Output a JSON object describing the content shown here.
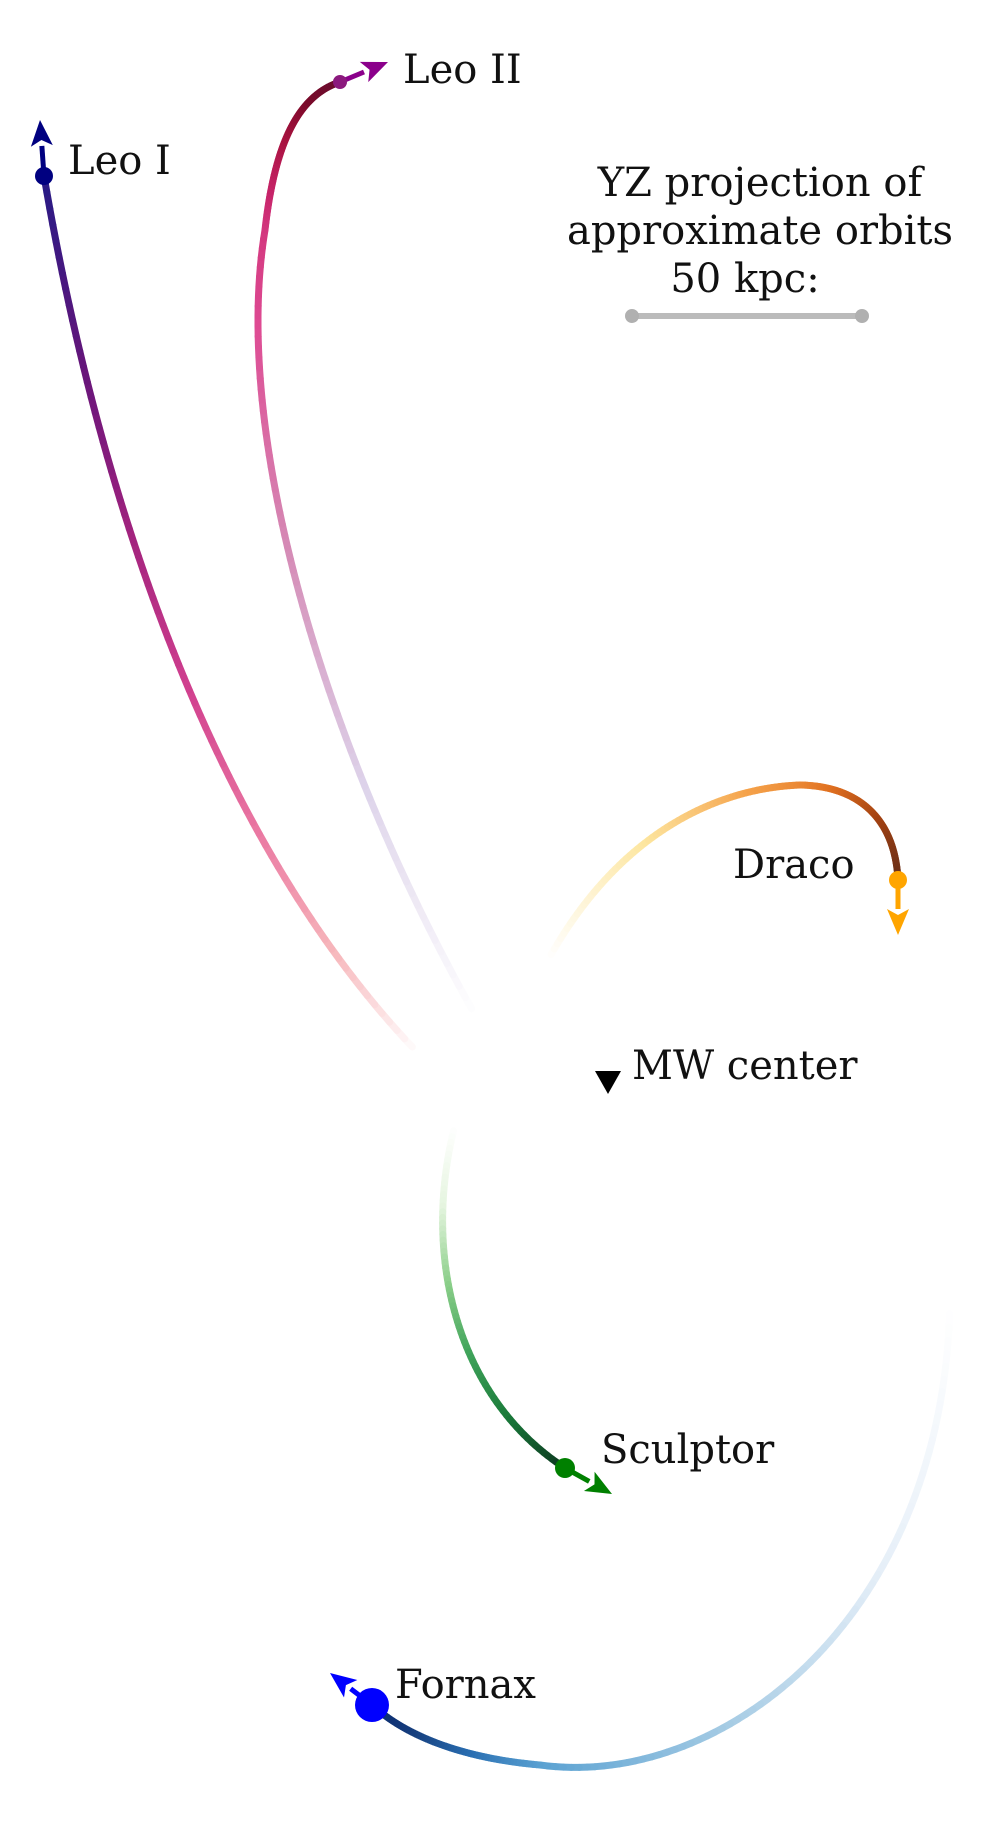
{
  "legend": {
    "title_lines": [
      "YZ projection of",
      "approximate orbits",
      "50 kpc:"
    ]
  },
  "center": {
    "label": "MW center"
  },
  "galaxies": [
    {
      "id": "leo-i",
      "name": "Leo I",
      "colormap": [
        "#000080",
        "#2a1a85",
        "#66157a",
        "#a3237e",
        "#d2418f",
        "#ea78a2",
        "#f7b7bb",
        "#ffffff"
      ],
      "marker_color": "#000080",
      "arrow_color": "#000080",
      "marker_size": "small"
    },
    {
      "id": "leo-ii",
      "name": "Leo II",
      "colormap": [
        "#8b008b",
        "#6a0d2f",
        "#7a0a2a",
        "#a8123f",
        "#c8256b",
        "#de4b93",
        "#d58ab5",
        "#ddd3ea",
        "#ffffff"
      ],
      "marker_color": "#8b1a7e",
      "arrow_color": "#8b008b",
      "marker_size": "small"
    },
    {
      "id": "draco",
      "name": "Draco",
      "colormap": [
        "#ffa500",
        "#6b2f18",
        "#a34212",
        "#e07020",
        "#f5a24a",
        "#fde6a0",
        "#ffffff"
      ],
      "marker_color": "#ffa500",
      "arrow_color": "#ffa500",
      "marker_size": "small"
    },
    {
      "id": "sculptor",
      "name": "Sculptor",
      "colormap": [
        "#008000",
        "#0d3d22",
        "#1a7a3a",
        "#3fa35a",
        "#8ccf8a",
        "#e6f5e0",
        "#ffffff"
      ],
      "marker_color": "#008000",
      "arrow_color": "#008000",
      "marker_size": "small"
    },
    {
      "id": "fornax",
      "name": "Fornax",
      "colormap": [
        "#0000ff",
        "#0a2a6e",
        "#17407f",
        "#2a6fb2",
        "#5ba2d2",
        "#a5cbe4",
        "#e6eff8",
        "#ffffff"
      ],
      "marker_color": "#0000ff",
      "arrow_color": "#0000ff",
      "marker_size": "large"
    }
  ]
}
